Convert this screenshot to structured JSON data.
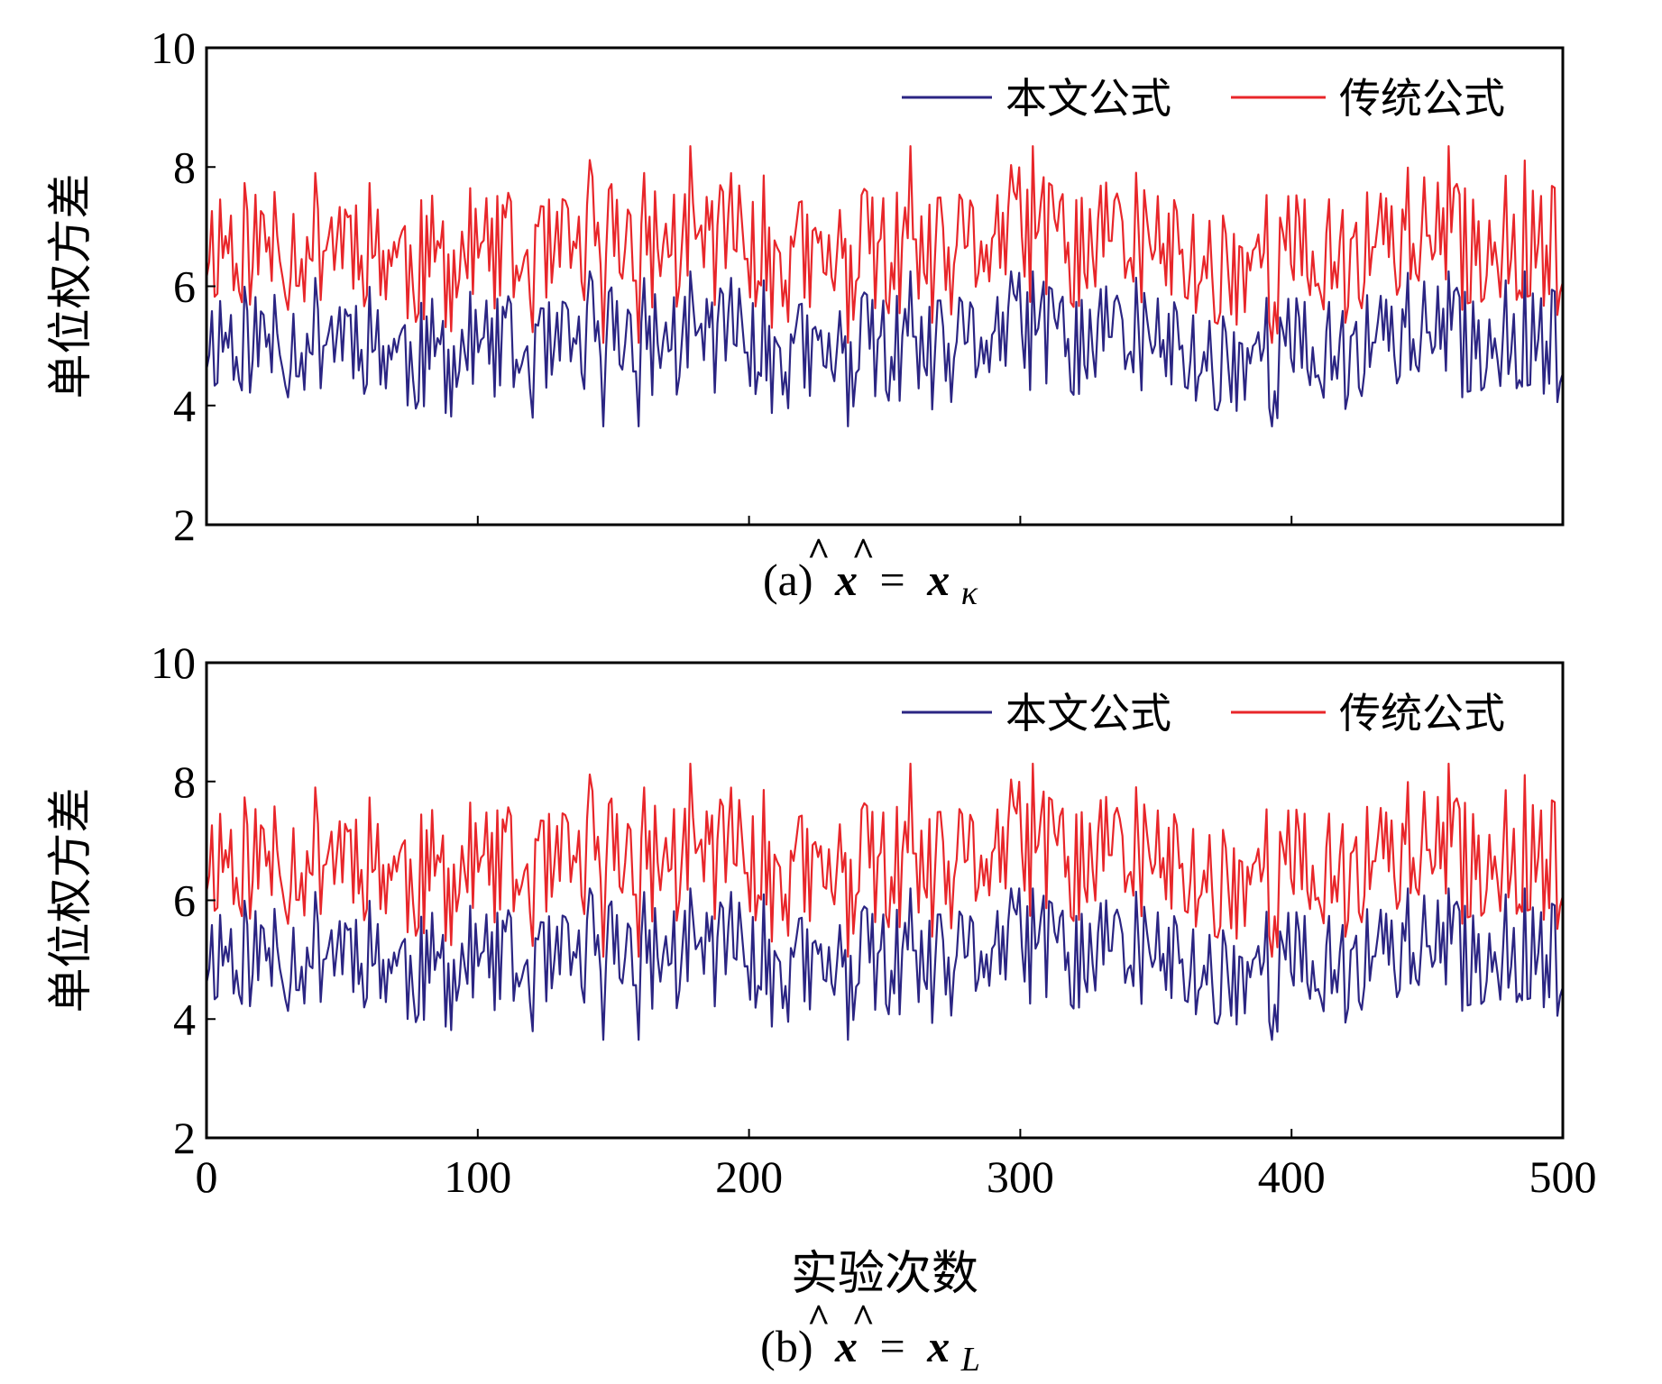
{
  "chart_data": [
    {
      "type": "line",
      "panel": "a",
      "caption": {
        "prefix": "(a)",
        "lhs": "x",
        "hat": "^",
        "eq": "=",
        "rhs": "x",
        "sub": "κ"
      },
      "ylabel": "单位权方差",
      "xlabel": "",
      "xlim": [
        0,
        500
      ],
      "ylim": [
        2,
        10
      ],
      "x_ticks": [
        0,
        100,
        200,
        300,
        400,
        500
      ],
      "y_ticks": [
        2,
        4,
        6,
        8,
        10
      ],
      "y_tick_labels": [
        "2",
        "4",
        "6",
        "8",
        "10"
      ],
      "x_tick_labels_shown": false,
      "legend": {
        "position": "top-right",
        "entries": [
          "本文公式",
          "传统公式"
        ]
      },
      "series": [
        {
          "name": "本文公式",
          "color": "#2b2583",
          "base": 5.0,
          "amp": 0.55,
          "spread": 1.0,
          "min": 3.65,
          "max": 6.25,
          "seed": 11
        },
        {
          "name": "传统公式",
          "color": "#e8262a",
          "base": 6.6,
          "amp": 0.6,
          "spread": 1.15,
          "min": 5.05,
          "max": 8.35,
          "seed": 11
        }
      ],
      "n_points": 500
    },
    {
      "type": "line",
      "panel": "b",
      "caption": {
        "prefix": "(b)",
        "lhs": "x",
        "hat": "^",
        "eq": "=",
        "rhs": "x",
        "sub": "L"
      },
      "ylabel": "单位权方差",
      "xlabel": "实验次数",
      "xlim": [
        0,
        500
      ],
      "ylim": [
        2,
        10
      ],
      "x_ticks": [
        0,
        100,
        200,
        300,
        400,
        500
      ],
      "x_tick_labels": [
        "0",
        "100",
        "200",
        "300",
        "400",
        "500"
      ],
      "y_ticks": [
        2,
        4,
        6,
        8,
        10
      ],
      "y_tick_labels": [
        "2",
        "4",
        "6",
        "8",
        "10"
      ],
      "x_tick_labels_shown": true,
      "legend": {
        "position": "top-right",
        "entries": [
          "本文公式",
          "传统公式"
        ]
      },
      "series": [
        {
          "name": "本文公式",
          "color": "#2b2583",
          "base": 5.0,
          "amp": 0.55,
          "spread": 1.0,
          "min": 3.65,
          "max": 6.2,
          "seed": 11
        },
        {
          "name": "传统公式",
          "color": "#e8262a",
          "base": 6.6,
          "amp": 0.6,
          "spread": 1.15,
          "min": 5.05,
          "max": 8.3,
          "seed": 11
        }
      ],
      "n_points": 500
    }
  ]
}
